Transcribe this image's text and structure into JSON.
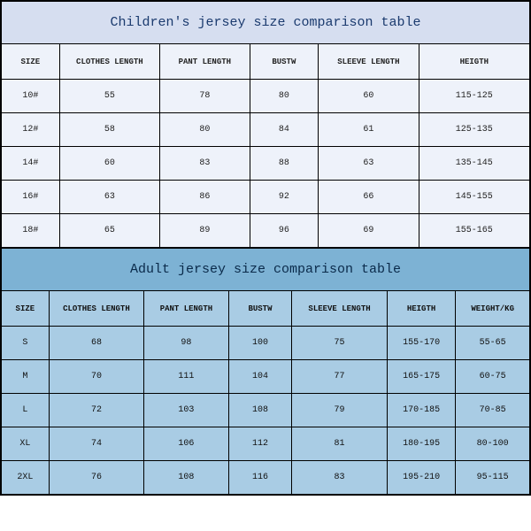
{
  "children": {
    "title": "Children's jersey size comparison table",
    "columns": [
      "SIZE",
      "CLOTHES LENGTH",
      "PANT LENGTH",
      "BUSTW",
      "SLEEVE LENGTH",
      "HEIGTH"
    ],
    "col_widths_pct": [
      11,
      19,
      17,
      13,
      19,
      21
    ],
    "rows": [
      [
        "10#",
        "55",
        "78",
        "80",
        "60",
        "115-125"
      ],
      [
        "12#",
        "58",
        "80",
        "84",
        "61",
        "125-135"
      ],
      [
        "14#",
        "60",
        "83",
        "88",
        "63",
        "135-145"
      ],
      [
        "16#",
        "63",
        "86",
        "92",
        "66",
        "145-155"
      ],
      [
        "18#",
        "65",
        "89",
        "96",
        "69",
        "155-165"
      ]
    ],
    "title_bg": "#d6def0",
    "title_color": "#1a3a6e",
    "cell_bg": "#eef2fa",
    "header_bg": "#eef2fa",
    "border_color": "#000000",
    "title_fontsize": 15,
    "header_fontsize": 9,
    "data_fontsize": 10
  },
  "adult": {
    "title": "Adult jersey size comparison table",
    "columns": [
      "SIZE",
      "CLOTHES LENGTH",
      "PANT LENGTH",
      "BUSTW",
      "SLEEVE LENGTH",
      "HEIGTH",
      "WEIGHT/KG"
    ],
    "col_widths_pct": [
      9,
      18,
      16,
      12,
      18,
      13,
      14
    ],
    "rows": [
      [
        "S",
        "68",
        "98",
        "100",
        "75",
        "155-170",
        "55-65"
      ],
      [
        "M",
        "70",
        "111",
        "104",
        "77",
        "165-175",
        "60-75"
      ],
      [
        "L",
        "72",
        "103",
        "108",
        "79",
        "170-185",
        "70-85"
      ],
      [
        "XL",
        "74",
        "106",
        "112",
        "81",
        "180-195",
        "80-100"
      ],
      [
        "2XL",
        "76",
        "108",
        "116",
        "83",
        "195-210",
        "95-115"
      ]
    ],
    "title_bg": "#7db2d4",
    "title_color": "#0a2a4a",
    "cell_bg": "#a9cce4",
    "header_bg": "#a9cce4",
    "border_color": "#000000",
    "title_fontsize": 15,
    "header_fontsize": 9,
    "data_fontsize": 10
  }
}
